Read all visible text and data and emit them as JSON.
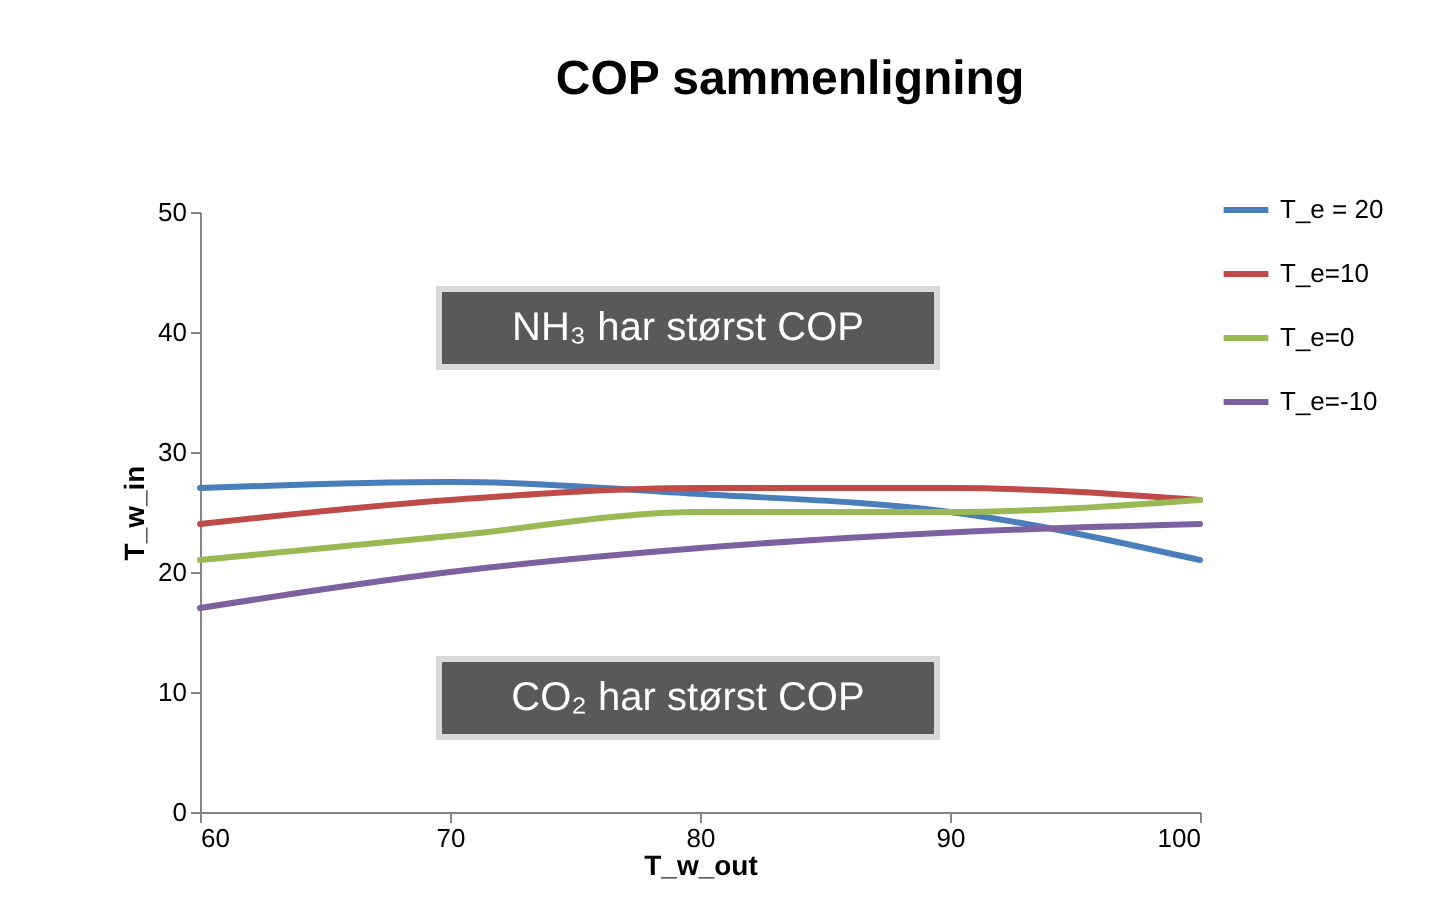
{
  "chart_data": {
    "type": "line",
    "title": "COP sammenligning",
    "xlabel": "T_w_out",
    "ylabel": "T_w_in",
    "x": [
      60,
      70,
      80,
      90,
      100
    ],
    "series": [
      {
        "name": "T_e = 20",
        "color": "#4a7ebb",
        "values": [
          27,
          27.5,
          26.5,
          25,
          21
        ]
      },
      {
        "name": "T_e=10",
        "color": "#be4b48",
        "values": [
          24,
          26,
          27,
          27,
          26
        ]
      },
      {
        "name": "T_e=0",
        "color": "#98b954",
        "values": [
          21,
          23,
          25,
          25,
          26
        ]
      },
      {
        "name": "T_e=-10",
        "color": "#7d60a0",
        "values": [
          17,
          20,
          22,
          23.3,
          24
        ]
      }
    ],
    "xlim": [
      60,
      100
    ],
    "xticks": [
      60,
      70,
      80,
      90,
      100
    ],
    "ylim": [
      0,
      50
    ],
    "yticks": [
      0,
      10,
      20,
      30,
      40,
      50
    ],
    "annotations": [
      "NH₃ har størst COP",
      "CO₂ har størst COP"
    ],
    "legend": "top right",
    "grid": false,
    "marker": "none",
    "line_style": "solid"
  }
}
